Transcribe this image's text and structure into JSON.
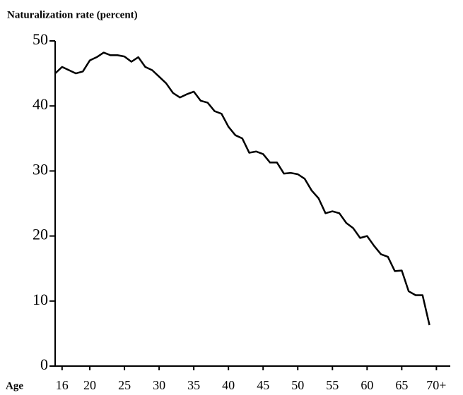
{
  "chart_data": {
    "type": "line",
    "title": "Naturalization rate (percent)",
    "xlabel": "Age",
    "x": [
      15,
      16,
      17,
      18,
      19,
      20,
      21,
      22,
      23,
      24,
      25,
      26,
      27,
      28,
      29,
      30,
      31,
      32,
      33,
      34,
      35,
      36,
      37,
      38,
      39,
      40,
      41,
      42,
      43,
      44,
      45,
      46,
      47,
      48,
      49,
      50,
      51,
      52,
      53,
      54,
      55,
      56,
      57,
      58,
      59,
      60,
      61,
      62,
      63,
      64,
      65,
      66,
      67,
      68,
      69
    ],
    "series": [
      {
        "name": "Naturalization rate",
        "color": "#000000",
        "values": [
          45,
          46,
          45.5,
          45,
          45.3,
          47,
          47.5,
          48.2,
          47.8,
          47.8,
          47.6,
          46.8,
          47.5,
          46,
          45.5,
          44.5,
          43.5,
          42,
          41.3,
          41.8,
          42.2,
          40.8,
          40.5,
          39.2,
          38.8,
          36.8,
          35.5,
          35,
          32.8,
          33,
          32.6,
          31.3,
          31.3,
          29.6,
          29.7,
          29.5,
          28.8,
          27,
          25.8,
          23.5,
          23.8,
          23.5,
          22,
          21.2,
          19.7,
          20,
          18.5,
          17.2,
          16.8,
          14.6,
          14.7,
          11.5,
          10.9,
          10.9,
          6.3
        ]
      }
    ],
    "xlim": [
      15,
      72
    ],
    "xticks": [
      16,
      20,
      25,
      30,
      35,
      40,
      45,
      50,
      55,
      60,
      65,
      {
        "value": 70,
        "label": "70+"
      }
    ],
    "ylim": [
      0,
      50
    ],
    "yticks": [
      0,
      10,
      20,
      30,
      40,
      50
    ],
    "grid": false
  }
}
